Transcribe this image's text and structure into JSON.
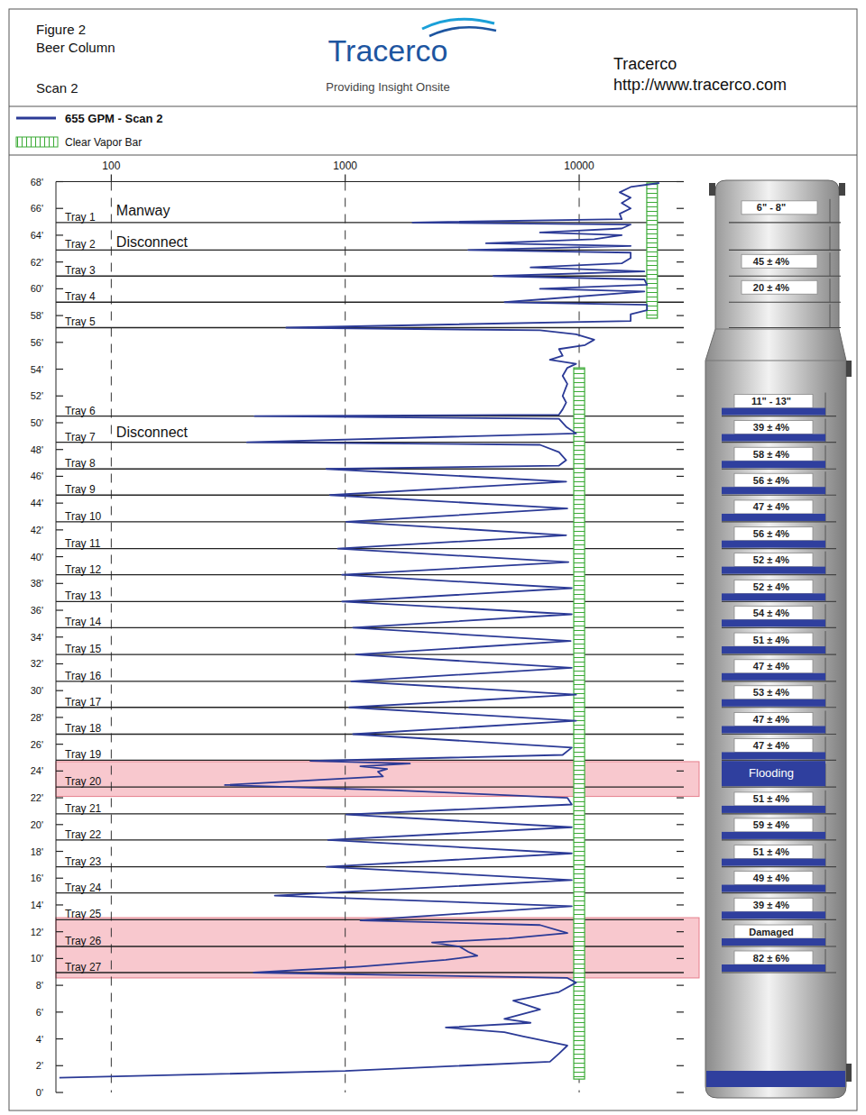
{
  "header": {
    "figure": "Figure 2",
    "name": "Beer Column",
    "scan": "Scan 2",
    "logo": "Tracerco",
    "tagline": "Providing Insight Onsite",
    "company": "Tracerco",
    "url": "http://www.tracerco.com"
  },
  "chart_data": {
    "type": "line",
    "log": "x",
    "grid": true,
    "legend": "top",
    "xlim": [
      58,
      28000
    ],
    "xticks": [
      100,
      1000,
      10000
    ],
    "ylim": [
      0,
      68
    ],
    "yticks": [
      {
        "value": 0,
        "label": "0'"
      },
      {
        "value": 2,
        "label": "2'"
      },
      {
        "value": 4,
        "label": "4'"
      },
      {
        "value": 6,
        "label": "6'"
      },
      {
        "value": 8,
        "label": "8'"
      },
      {
        "value": 10,
        "label": "10'"
      },
      {
        "value": 12,
        "label": "12'"
      },
      {
        "value": 14,
        "label": "14'"
      },
      {
        "value": 16,
        "label": "16'"
      },
      {
        "value": 18,
        "label": "18'"
      },
      {
        "value": 20,
        "label": "20'"
      },
      {
        "value": 22,
        "label": "22'"
      },
      {
        "value": 24,
        "label": "24'"
      },
      {
        "value": 26,
        "label": "26'"
      },
      {
        "value": 28,
        "label": "28'"
      },
      {
        "value": 30,
        "label": "30'"
      },
      {
        "value": 32,
        "label": "32'"
      },
      {
        "value": 34,
        "label": "34'"
      },
      {
        "value": 36,
        "label": "36'"
      },
      {
        "value": 38,
        "label": "38'"
      },
      {
        "value": 40,
        "label": "40'"
      },
      {
        "value": 42,
        "label": "42'"
      },
      {
        "value": 44,
        "label": "44'"
      },
      {
        "value": 46,
        "label": "46'"
      },
      {
        "value": 48,
        "label": "48'"
      },
      {
        "value": 50,
        "label": "50'"
      },
      {
        "value": 52,
        "label": "52'"
      },
      {
        "value": 54,
        "label": "54'"
      },
      {
        "value": 56,
        "label": "56'"
      },
      {
        "value": 58,
        "label": "58'"
      },
      {
        "value": 60,
        "label": "60'"
      },
      {
        "value": 62,
        "label": "62'"
      },
      {
        "value": 64,
        "label": "64'"
      },
      {
        "value": 66,
        "label": "66'"
      },
      {
        "value": 68,
        "label": "68'"
      }
    ],
    "series": [
      {
        "name": "655 GPM - Scan 2",
        "color": "#2b3a96",
        "x": [
          22000,
          16600,
          14900,
          16600,
          15200,
          16600,
          14900,
          15200,
          1940,
          16600,
          15200,
          6800,
          15200,
          11600,
          4000,
          16600,
          3360,
          16600,
          16600,
          15200,
          6200,
          19000,
          4300,
          19000,
          19500,
          6800,
          19000,
          4800,
          19500,
          19500,
          16600,
          16600,
          560,
          6800,
          9700,
          11600,
          10600,
          8200,
          8500,
          7500,
          9700,
          8900,
          8500,
          8900,
          8500,
          8800,
          8500,
          8200,
          410,
          8200,
          8800,
          9700,
          380,
          6800,
          8200,
          8800,
          8200,
          830,
          8800,
          860,
          8900,
          1010,
          8800,
          930,
          9000,
          970,
          9300,
          970,
          9300,
          1080,
          9200,
          1110,
          9300,
          1060,
          9700,
          1040,
          9700,
          1080,
          9300,
          8500,
          710,
          1890,
          1160,
          1510,
          1380,
          1450,
          306,
          1650,
          8900,
          9300,
          1010,
          9300,
          845,
          9300,
          830,
          9300,
          500,
          9300,
          1160,
          6800,
          8900,
          5000,
          2350,
          3070,
          3360,
          3670,
          2690,
          1160,
          406,
          8900,
          9700,
          8200,
          5230,
          6800,
          4790,
          6200,
          2690,
          4790,
          5720,
          8900,
          8200,
          7500,
          1000,
          60
        ],
        "y": [
          67.9,
          67.6,
          67.2,
          66.8,
          66.4,
          66.0,
          65.6,
          65.2,
          64.95,
          64.8,
          64.5,
          64.2,
          64.0,
          63.7,
          63.4,
          63.2,
          62.9,
          62.7,
          62.3,
          61.9,
          61.6,
          61.3,
          60.95,
          60.7,
          60.3,
          60.0,
          59.8,
          59.0,
          58.8,
          58.4,
          58.1,
          57.6,
          57.1,
          56.9,
          56.6,
          56.2,
          55.8,
          55.5,
          55.0,
          54.7,
          54.4,
          54.1,
          53.5,
          52.9,
          52.0,
          51.5,
          51.0,
          50.6,
          50.5,
          50.3,
          49.7,
          49.2,
          48.55,
          48.35,
          47.8,
          47.2,
          46.8,
          46.55,
          45.6,
          44.6,
          43.6,
          42.6,
          41.6,
          40.6,
          39.6,
          38.65,
          37.65,
          36.65,
          35.7,
          34.7,
          33.7,
          32.7,
          31.7,
          30.7,
          29.7,
          28.75,
          27.75,
          26.75,
          25.75,
          25.2,
          24.75,
          24.55,
          24.35,
          24.15,
          23.95,
          23.6,
          22.95,
          22.55,
          22.0,
          21.5,
          20.75,
          19.8,
          18.85,
          17.85,
          16.85,
          15.85,
          14.7,
          13.9,
          12.85,
          12.5,
          11.9,
          11.5,
          11.2,
          10.9,
          10.5,
          10.2,
          9.9,
          9.4,
          8.95,
          8.55,
          8.2,
          7.5,
          6.85,
          6.2,
          5.5,
          5.2,
          4.85,
          4.5,
          4.2,
          3.5,
          2.9,
          2.3,
          1.6,
          1.1
        ]
      }
    ],
    "clear_vapor_bar": {
      "name": "Clear Vapor Bar",
      "color": "#3aaa35",
      "segments": [
        {
          "x": [
            19450,
            21600
          ],
          "y": [
            57.8,
            67.9
          ]
        },
        {
          "x": [
            9480,
            10550
          ],
          "y": [
            1.0,
            54.1
          ]
        }
      ]
    },
    "trays": [
      {
        "name": "Tray 1",
        "elevation": 64.95,
        "reading": "6\" - 8\""
      },
      {
        "name": "Tray 2",
        "elevation": 62.9
      },
      {
        "name": "Tray 3",
        "elevation": 60.95,
        "reading": "45 ± 4%"
      },
      {
        "name": "Tray 4",
        "elevation": 59.0,
        "reading": "20 ± 4%"
      },
      {
        "name": "Tray 5",
        "elevation": 57.1
      },
      {
        "name": "Tray 6",
        "elevation": 50.5,
        "reading": "11\" - 13\""
      },
      {
        "name": "Tray 7",
        "elevation": 48.55,
        "reading": "39 ± 4%"
      },
      {
        "name": "Tray 8",
        "elevation": 46.55,
        "reading": "58 ± 4%"
      },
      {
        "name": "Tray 9",
        "elevation": 44.6,
        "reading": "56 ± 4%"
      },
      {
        "name": "Tray 10",
        "elevation": 42.6,
        "reading": "47 ± 4%"
      },
      {
        "name": "Tray 11",
        "elevation": 40.6,
        "reading": "56 ± 4%"
      },
      {
        "name": "Tray 12",
        "elevation": 38.65,
        "reading": "52 ± 4%"
      },
      {
        "name": "Tray 13",
        "elevation": 36.65,
        "reading": "52 ± 4%"
      },
      {
        "name": "Tray 14",
        "elevation": 34.7,
        "reading": "54 ± 4%"
      },
      {
        "name": "Tray 15",
        "elevation": 32.7,
        "reading": "51 ± 4%"
      },
      {
        "name": "Tray 16",
        "elevation": 30.7,
        "reading": "47 ± 4%"
      },
      {
        "name": "Tray 17",
        "elevation": 28.75,
        "reading": "53 ± 4%"
      },
      {
        "name": "Tray 18",
        "elevation": 26.75,
        "reading": "47 ± 4%"
      },
      {
        "name": "Tray 19",
        "elevation": 24.8,
        "reading": "47 ± 4%"
      },
      {
        "name": "Tray 20",
        "elevation": 22.8,
        "reading": "Flooding",
        "flooded": true
      },
      {
        "name": "Tray 21",
        "elevation": 20.8,
        "reading": "51 ± 4%"
      },
      {
        "name": "Tray 22",
        "elevation": 18.85,
        "reading": "59 ± 4%"
      },
      {
        "name": "Tray 23",
        "elevation": 16.85,
        "reading": "51 ± 4%"
      },
      {
        "name": "Tray 24",
        "elevation": 14.9,
        "reading": "49 ± 4%"
      },
      {
        "name": "Tray 25",
        "elevation": 12.9,
        "reading": "39 ± 4%"
      },
      {
        "name": "Tray 26",
        "elevation": 10.9,
        "reading": "Damaged"
      },
      {
        "name": "Tray 27",
        "elevation": 8.95,
        "reading": "82 ± 6%"
      }
    ],
    "annotations": [
      {
        "text": "Manway",
        "x": 105,
        "y": 65.5
      },
      {
        "text": "Disconnect",
        "x": 105,
        "y": 63.15
      },
      {
        "text": "Disconnect",
        "x": 105,
        "y": 48.9
      }
    ],
    "highlights": [
      {
        "y": [
          22.1,
          24.7
        ],
        "color": "#f4a3ad"
      },
      {
        "y": [
          8.55,
          13.05
        ],
        "color": "#f4a3ad"
      }
    ]
  }
}
